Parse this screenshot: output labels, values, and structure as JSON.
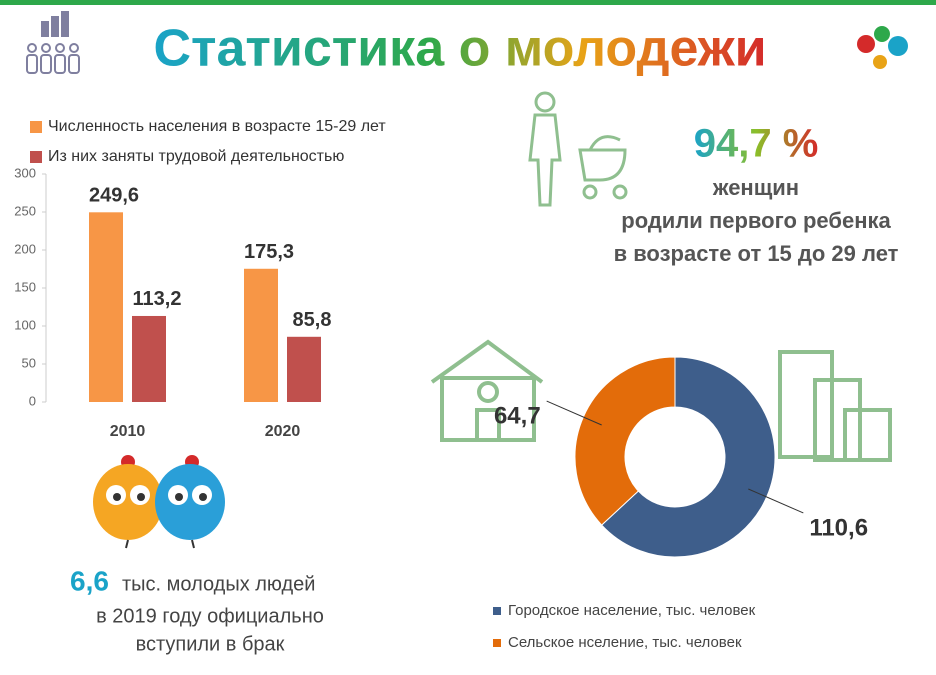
{
  "title": "Статистика о молодежи",
  "chart_data": [
    {
      "type": "bar",
      "categories": [
        "2010",
        "2020"
      ],
      "series": [
        {
          "name": "Численность населения в возрасте 15-29 лет",
          "color": "#f79646",
          "values": [
            249.6,
            175.3
          ],
          "value_labels": [
            "249,6",
            "175,3"
          ]
        },
        {
          "name": "Из них заняты трудовой деятельностью",
          "color": "#c0504d",
          "values": [
            113.2,
            85.8
          ],
          "value_labels": [
            "113,2",
            "85,8"
          ]
        }
      ],
      "ylim": [
        0,
        300
      ],
      "yticks": [
        0,
        50,
        100,
        150,
        200,
        250,
        300
      ]
    },
    {
      "type": "donut",
      "categories": [
        "Городское население, тыс. человек",
        "Сельское нселение, тыс. человек"
      ],
      "values": [
        110.6,
        64.7
      ],
      "value_labels": [
        "110,6",
        "64,7"
      ],
      "colors": [
        "#3e5e8b",
        "#e36c0a"
      ]
    }
  ],
  "women": {
    "value": "94,7 %",
    "lines": [
      "женщин",
      "родили первого ребенка",
      "в возрасте от 15 до 29 лет"
    ]
  },
  "marriage": {
    "value": "6,6",
    "lines": [
      "тыс. молодых людей",
      "в 2019 году официально",
      "вступили в брак"
    ]
  }
}
